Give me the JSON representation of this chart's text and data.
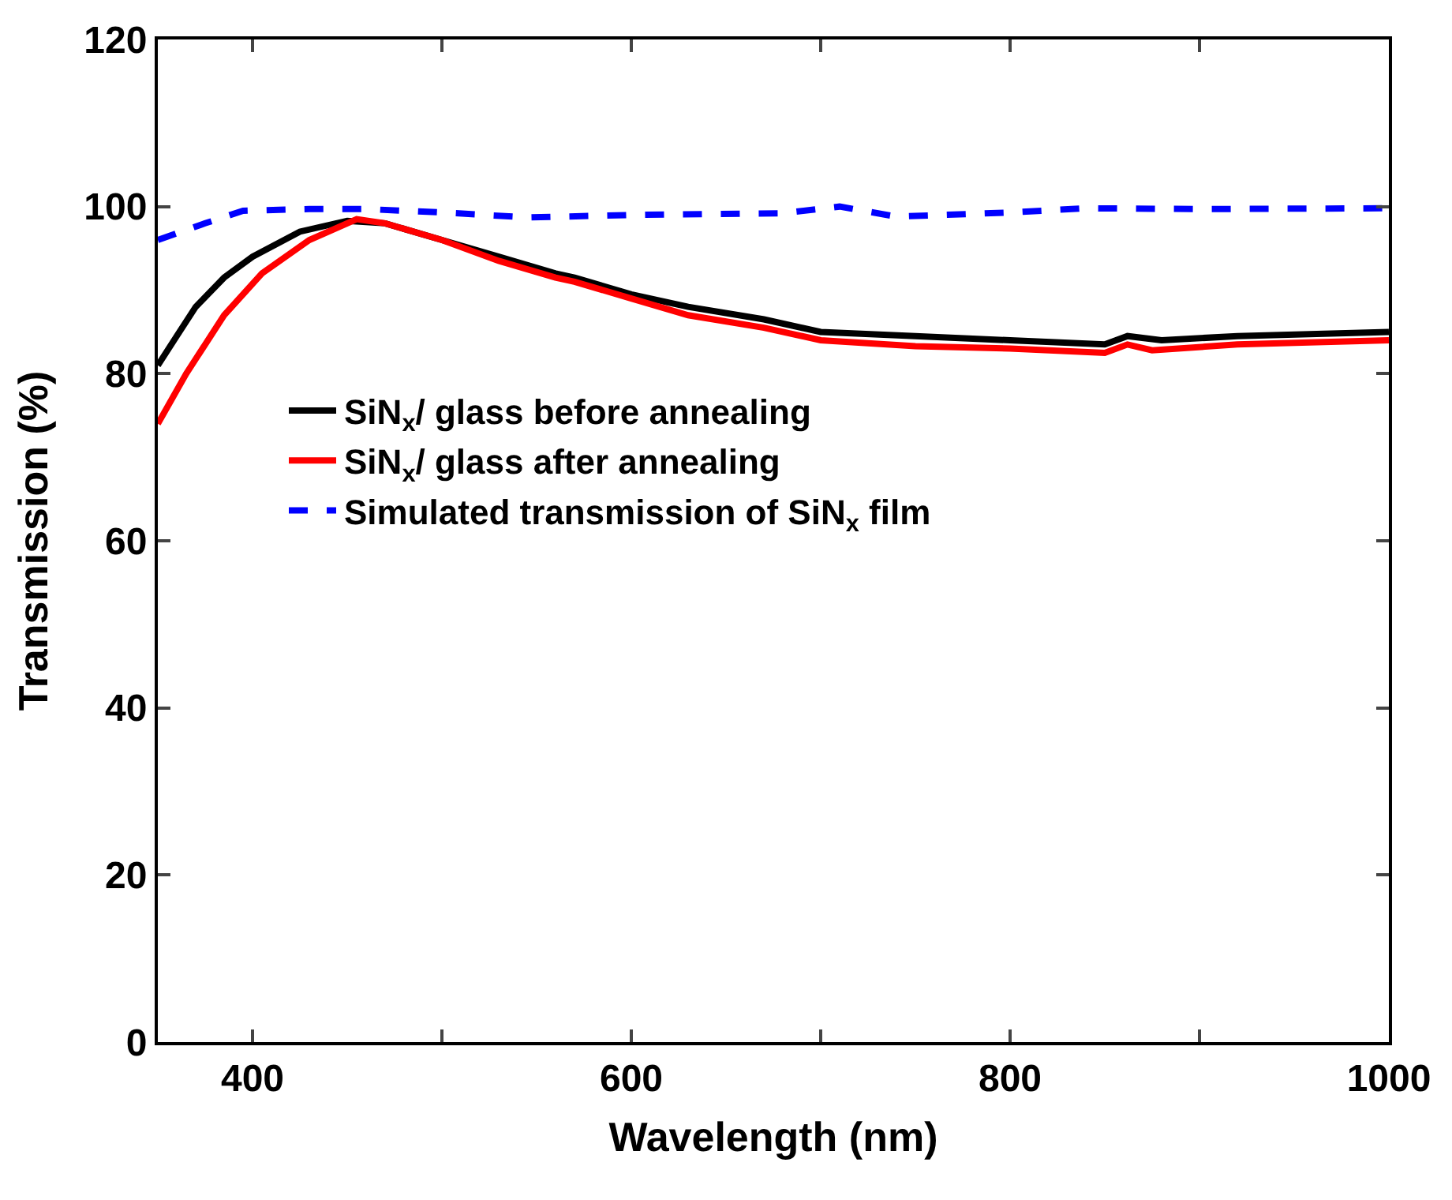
{
  "chart_data": {
    "type": "line",
    "xlabel": "Wavelength (nm)",
    "ylabel": "Transmission (%)",
    "xlim": [
      350,
      1000
    ],
    "ylim": [
      0,
      120
    ],
    "xticks": [
      400,
      {
        "value": 500,
        "label": null
      },
      600,
      {
        "value": 700,
        "label": null
      },
      800,
      {
        "value": 900,
        "label": null
      },
      1000
    ],
    "yticks": [
      0,
      20,
      40,
      60,
      80,
      100,
      120
    ],
    "legend": "left",
    "series": [
      {
        "name": "SiN$_{x}$/ glass before annealing",
        "color": "#000000",
        "line_style": "solid",
        "x": [
          350,
          360,
          370,
          385,
          400,
          425,
          450,
          470,
          500,
          530,
          560,
          570,
          600,
          630,
          670,
          700,
          750,
          800,
          850,
          862,
          880,
          920,
          1000
        ],
        "values": [
          81,
          84.5,
          88,
          91.5,
          94,
          97,
          98.3,
          98,
          96,
          94,
          92,
          91.5,
          89.5,
          88,
          86.5,
          85,
          84.5,
          84,
          83.5,
          84.5,
          84,
          84.5,
          85
        ]
      },
      {
        "name": "SiN$_{x}$/ glass after annealing",
        "color": "#ff0000",
        "line_style": "solid",
        "x": [
          350,
          365,
          385,
          405,
          430,
          455,
          470,
          500,
          530,
          560,
          570,
          600,
          630,
          670,
          700,
          750,
          800,
          850,
          862,
          875,
          920,
          1000
        ],
        "values": [
          74,
          80,
          87,
          92,
          96,
          98.5,
          98,
          96,
          93.5,
          91.5,
          91,
          89,
          87,
          85.5,
          84,
          83.3,
          83,
          82.5,
          83.5,
          82.8,
          83.5,
          84
        ]
      },
      {
        "name": "Simulated transmission of SiN$_{x}$ film",
        "color": "#0000ff",
        "line_style": "dashed",
        "x": [
          350,
          375,
          395,
          430,
          460,
          500,
          545,
          600,
          680,
          710,
          740,
          800,
          840,
          900,
          1000
        ],
        "values": [
          96,
          98,
          99.5,
          99.7,
          99.7,
          99.3,
          98.7,
          99,
          99.2,
          100,
          98.8,
          99.3,
          99.8,
          99.7,
          99.8
        ]
      }
    ]
  }
}
